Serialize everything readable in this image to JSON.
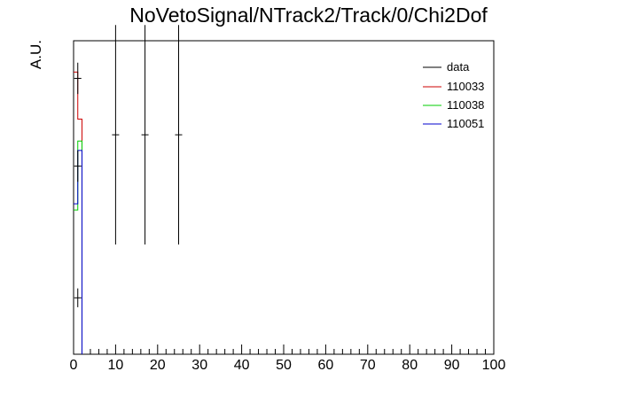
{
  "chart_data": {
    "type": "line",
    "title": "NoVetoSignal/NTrack2/Track/0/Chi2Dof",
    "xlabel": "",
    "ylabel": "A.U.",
    "xlim": [
      0,
      100
    ],
    "ylim": [
      0,
      1
    ],
    "x_ticks": [
      "0",
      "10",
      "20",
      "30",
      "40",
      "50",
      "60",
      "70",
      "80",
      "90",
      "100"
    ],
    "grid": false,
    "legend_position": "top-right",
    "series": [
      {
        "name": "data",
        "color": "#000000",
        "style": "points",
        "points": [
          {
            "x": 1.0,
            "y": 0.88,
            "err": 0.05
          },
          {
            "x": 1.0,
            "y": 0.18,
            "err": 0.03
          },
          {
            "x": 1.0,
            "y": 0.6,
            "err": 0.05
          },
          {
            "x": 10.0,
            "y": 0.7,
            "err": 0.35
          },
          {
            "x": 17.0,
            "y": 0.7,
            "err": 0.35
          },
          {
            "x": 25.0,
            "y": 0.7,
            "err": 0.35
          }
        ]
      },
      {
        "name": "110033",
        "color": "#cc0000",
        "style": "hist",
        "edges": [
          0,
          1,
          2
        ],
        "values": [
          0.9,
          0.75
        ]
      },
      {
        "name": "110038",
        "color": "#00cc00",
        "style": "hist",
        "edges": [
          0,
          1,
          2
        ],
        "values": [
          0.46,
          0.68
        ]
      },
      {
        "name": "110051",
        "color": "#0000cc",
        "style": "hist",
        "edges": [
          0,
          1,
          2
        ],
        "values": [
          0.48,
          0.65
        ]
      }
    ]
  }
}
